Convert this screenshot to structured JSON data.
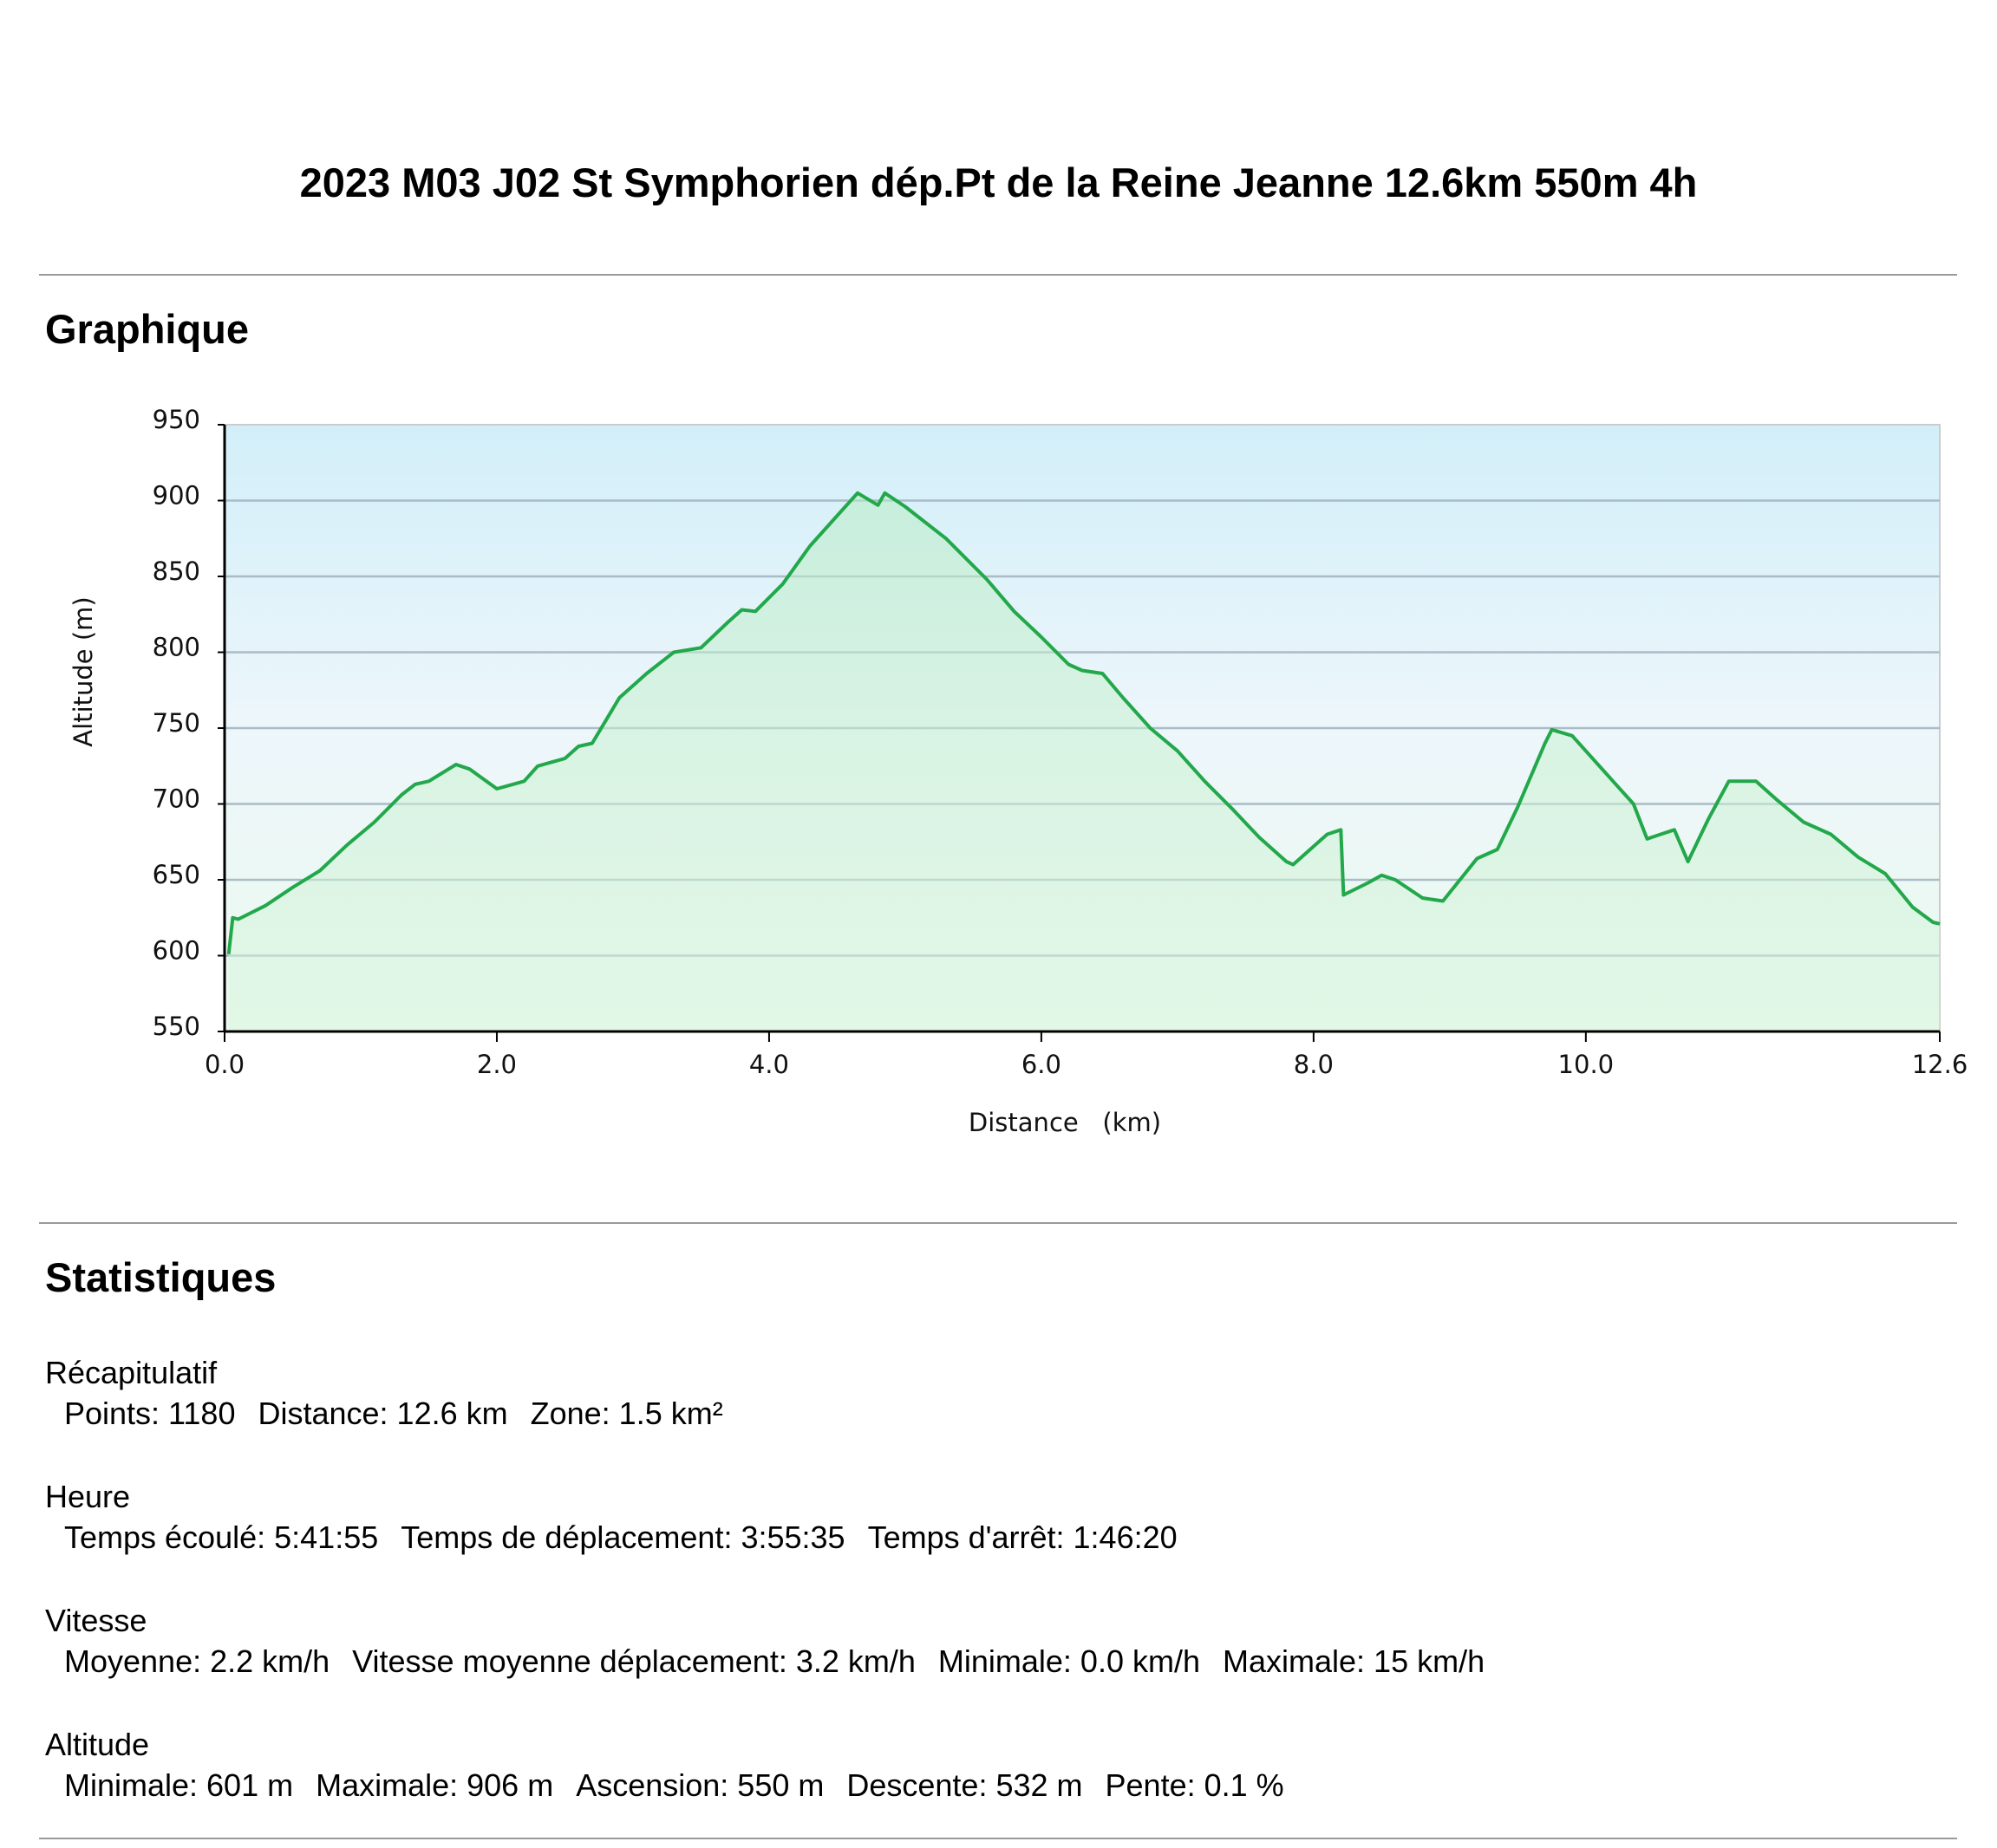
{
  "header": {
    "title": "2023 M03 J02 St Symphorien dép.Pt de la Reine Jeanne 12.6km 550m 4h"
  },
  "chart_section": {
    "heading": "Graphique"
  },
  "chart_data": {
    "type": "area",
    "x_label": "Distance   (km)",
    "y_label": "Altitude (m)",
    "x": [
      0.03,
      0.06,
      0.1,
      0.3,
      0.5,
      0.7,
      0.9,
      1.1,
      1.3,
      1.4,
      1.5,
      1.7,
      1.8,
      2.0,
      2.2,
      2.3,
      2.5,
      2.6,
      2.7,
      2.8,
      2.9,
      3.1,
      3.3,
      3.5,
      3.7,
      3.8,
      3.9,
      4.1,
      4.3,
      4.5,
      4.65,
      4.8,
      4.85,
      5.0,
      5.3,
      5.6,
      5.8,
      6.0,
      6.2,
      6.3,
      6.45,
      6.6,
      6.8,
      7.0,
      7.2,
      7.4,
      7.6,
      7.8,
      7.85,
      8.1,
      8.2,
      8.22,
      8.4,
      8.5,
      8.6,
      8.8,
      8.95,
      9.2,
      9.35,
      9.5,
      9.7,
      9.75,
      9.9,
      10.0,
      10.2,
      10.35,
      10.45,
      10.55,
      10.65,
      10.75,
      10.9,
      11.05,
      11.25,
      11.4,
      11.6,
      11.8,
      12.0,
      12.2,
      12.4,
      12.55,
      12.6
    ],
    "values": [
      601,
      625,
      624,
      633,
      645,
      656,
      673,
      688,
      706,
      713,
      715,
      726,
      723,
      710,
      715,
      725,
      730,
      738,
      740,
      755,
      770,
      786,
      800,
      803,
      820,
      828,
      827,
      845,
      870,
      890,
      905,
      897,
      905,
      896,
      875,
      848,
      827,
      810,
      792,
      788,
      786,
      770,
      750,
      735,
      715,
      697,
      678,
      662,
      660,
      680,
      683,
      640,
      648,
      653,
      650,
      638,
      636,
      664,
      670,
      698,
      740,
      749,
      745,
      735,
      715,
      700,
      677,
      680,
      683,
      662,
      690,
      715,
      715,
      703,
      688,
      680,
      665,
      654,
      632,
      622,
      621
    ],
    "color": "#22a84a",
    "xlim": [
      0,
      12.6
    ],
    "xticks": [
      {
        "value": 0,
        "label": "0.0"
      },
      {
        "value": 2,
        "label": "2.0"
      },
      {
        "value": 4,
        "label": "4.0"
      },
      {
        "value": 6,
        "label": "6.0"
      },
      {
        "value": 8,
        "label": "8.0"
      },
      {
        "value": 10,
        "label": "10.0"
      },
      12.6
    ],
    "ylim": [
      550,
      950
    ],
    "yticks": [
      550,
      600,
      650,
      700,
      750,
      800,
      850,
      900,
      950
    ],
    "grid": true
  },
  "stats": {
    "heading": "Statistiques",
    "sections": [
      {
        "label": "Récapitulatif",
        "items": [
          "Points: 1180",
          "Distance: 12.6 km",
          "Zone: 1.5 km²"
        ]
      },
      {
        "label": "Heure",
        "items": [
          "Temps écoulé: 5:41:55",
          "Temps de déplacement: 3:55:35",
          "Temps d'arrêt: 1:46:20"
        ]
      },
      {
        "label": "Vitesse",
        "items": [
          "Moyenne: 2.2 km/h",
          "Vitesse moyenne déplacement: 3.2 km/h",
          "Minimale: 0.0 km/h",
          "Maximale: 15 km/h"
        ]
      },
      {
        "label": "Altitude",
        "items": [
          "Minimale: 601 m",
          "Maximale: 906 m",
          "Ascension: 550 m",
          "Descente: 532 m",
          "Pente: 0.1 %"
        ]
      }
    ]
  }
}
